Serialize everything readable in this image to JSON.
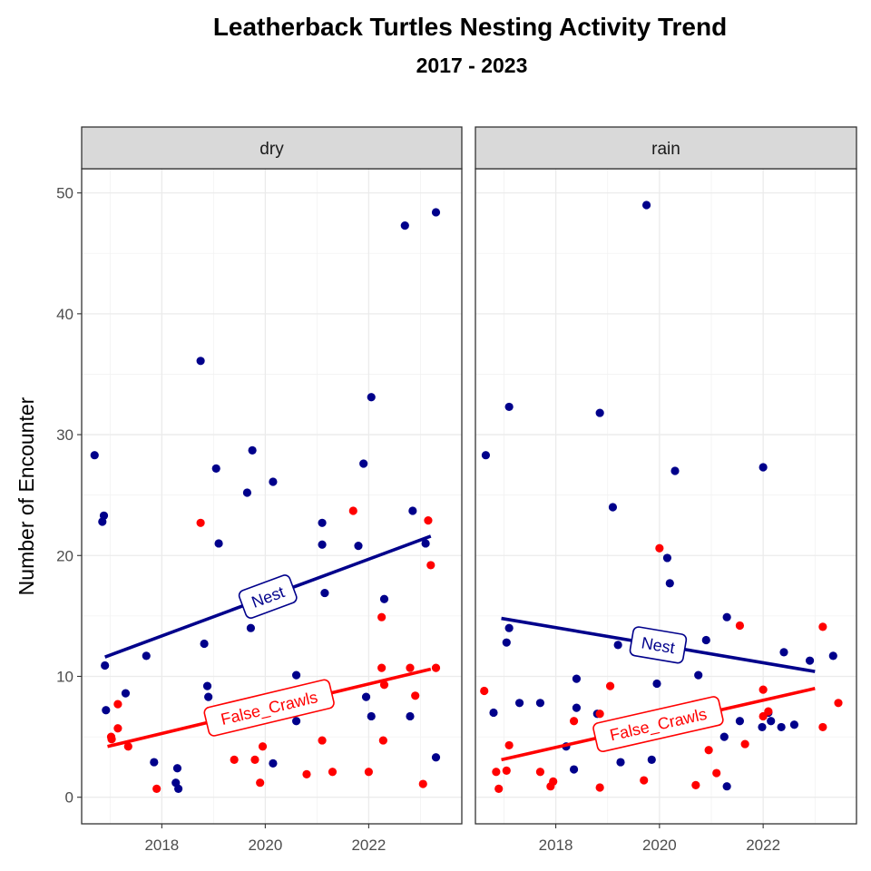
{
  "title": "Leatherback Turtles Nesting Activity Trend",
  "subtitle": "2017 - 2023",
  "chart_data": {
    "type": "scatter",
    "title": "Leatherback Turtles Nesting Activity Trend",
    "subtitle": "2017 - 2023",
    "xlabel": "",
    "ylabel": "Number of Encounter",
    "xlim": [
      2016.45,
      2023.8
    ],
    "ylim": [
      -2.2,
      52
    ],
    "x_ticks": [
      2018,
      2020,
      2022
    ],
    "x_tick_labels": [
      "2018",
      "2020",
      "2022"
    ],
    "y_ticks": [
      0,
      10,
      20,
      30,
      40,
      50
    ],
    "y_tick_labels": [
      "0",
      "10",
      "20",
      "30",
      "40",
      "50"
    ],
    "grid": true,
    "legend": "none",
    "colors": {
      "Nest": "#00008B",
      "False_Crawls": "#FF0000"
    },
    "panels": [
      {
        "label": "dry",
        "series": [
          {
            "name": "Nest",
            "points": [
              [
                2016.7,
                28.3
              ],
              [
                2016.85,
                22.8
              ],
              [
                2016.88,
                23.3
              ],
              [
                2016.9,
                10.9
              ],
              [
                2016.92,
                7.2
              ],
              [
                2017.3,
                8.6
              ],
              [
                2017.7,
                11.7
              ],
              [
                2017.85,
                2.9
              ],
              [
                2018.3,
                2.4
              ],
              [
                2018.27,
                1.2
              ],
              [
                2018.32,
                0.7
              ],
              [
                2018.75,
                36.1
              ],
              [
                2018.82,
                12.7
              ],
              [
                2018.88,
                9.2
              ],
              [
                2018.9,
                8.3
              ],
              [
                2019.05,
                27.2
              ],
              [
                2019.1,
                21.0
              ],
              [
                2019.65,
                25.2
              ],
              [
                2019.75,
                28.7
              ],
              [
                2019.72,
                14.0
              ],
              [
                2020.15,
                26.1
              ],
              [
                2020.15,
                2.8
              ],
              [
                2020.6,
                10.1
              ],
              [
                2020.6,
                6.3
              ],
              [
                2021.1,
                22.7
              ],
              [
                2021.1,
                20.9
              ],
              [
                2021.15,
                16.9
              ],
              [
                2021.8,
                20.8
              ],
              [
                2021.9,
                27.6
              ],
              [
                2021.95,
                8.3
              ],
              [
                2022.05,
                33.1
              ],
              [
                2022.05,
                6.7
              ],
              [
                2022.3,
                16.4
              ],
              [
                2022.7,
                47.3
              ],
              [
                2022.8,
                6.7
              ],
              [
                2022.85,
                23.7
              ],
              [
                2023.1,
                21.0
              ],
              [
                2023.3,
                48.4
              ],
              [
                2023.3,
                3.3
              ]
            ]
          },
          {
            "name": "False_Crawls",
            "points": [
              [
                2017.02,
                5.0
              ],
              [
                2017.03,
                4.8
              ],
              [
                2017.15,
                7.7
              ],
              [
                2017.15,
                5.7
              ],
              [
                2017.35,
                4.2
              ],
              [
                2017.9,
                0.7
              ],
              [
                2018.75,
                22.7
              ],
              [
                2019.4,
                3.1
              ],
              [
                2019.8,
                3.1
              ],
              [
                2019.9,
                1.2
              ],
              [
                2019.95,
                4.2
              ],
              [
                2020.8,
                1.9
              ],
              [
                2021.1,
                4.7
              ],
              [
                2021.3,
                2.1
              ],
              [
                2021.7,
                23.7
              ],
              [
                2022.0,
                2.1
              ],
              [
                2022.25,
                14.9
              ],
              [
                2022.25,
                10.7
              ],
              [
                2022.3,
                9.3
              ],
              [
                2022.28,
                4.7
              ],
              [
                2022.8,
                10.7
              ],
              [
                2022.9,
                8.4
              ],
              [
                2023.05,
                1.1
              ],
              [
                2023.15,
                22.9
              ],
              [
                2023.2,
                19.2
              ],
              [
                2023.3,
                10.7
              ]
            ]
          }
        ],
        "trend_lines": [
          {
            "name": "Nest",
            "x": [
              2016.9,
              2023.2
            ],
            "y": [
              11.6,
              21.6
            ],
            "label": "Nest"
          },
          {
            "name": "False_Crawls",
            "x": [
              2016.95,
              2023.2
            ],
            "y": [
              4.2,
              10.6
            ],
            "label": "False_Crawls"
          }
        ]
      },
      {
        "label": "rain",
        "series": [
          {
            "name": "Nest",
            "points": [
              [
                2016.65,
                28.3
              ],
              [
                2016.8,
                7.0
              ],
              [
                2017.05,
                12.8
              ],
              [
                2017.1,
                14.0
              ],
              [
                2017.1,
                32.3
              ],
              [
                2017.3,
                7.8
              ],
              [
                2017.7,
                7.8
              ],
              [
                2018.2,
                4.2
              ],
              [
                2018.35,
                2.3
              ],
              [
                2018.4,
                9.8
              ],
              [
                2018.4,
                7.4
              ],
              [
                2018.85,
                31.8
              ],
              [
                2018.8,
                6.9
              ],
              [
                2019.1,
                24.0
              ],
              [
                2019.2,
                12.6
              ],
              [
                2019.25,
                2.9
              ],
              [
                2019.75,
                49.0
              ],
              [
                2019.85,
                3.1
              ],
              [
                2019.95,
                9.4
              ],
              [
                2020.15,
                19.8
              ],
              [
                2020.2,
                17.7
              ],
              [
                2020.3,
                27.0
              ],
              [
                2020.75,
                10.1
              ],
              [
                2020.9,
                13.0
              ],
              [
                2021.3,
                14.9
              ],
              [
                2021.25,
                5.0
              ],
              [
                2021.3,
                0.9
              ],
              [
                2021.55,
                6.3
              ],
              [
                2022.0,
                27.3
              ],
              [
                2021.98,
                5.8
              ],
              [
                2022.1,
                7.0
              ],
              [
                2022.15,
                6.3
              ],
              [
                2022.4,
                12.0
              ],
              [
                2022.35,
                5.8
              ],
              [
                2022.6,
                6.0
              ],
              [
                2022.9,
                11.3
              ],
              [
                2023.35,
                11.7
              ]
            ]
          },
          {
            "name": "False_Crawls",
            "points": [
              [
                2016.62,
                8.8
              ],
              [
                2016.85,
                2.1
              ],
              [
                2016.9,
                0.7
              ],
              [
                2017.05,
                2.2
              ],
              [
                2017.1,
                4.3
              ],
              [
                2017.7,
                2.1
              ],
              [
                2017.9,
                0.9
              ],
              [
                2017.95,
                1.3
              ],
              [
                2018.35,
                6.3
              ],
              [
                2018.85,
                6.9
              ],
              [
                2018.85,
                0.8
              ],
              [
                2019.05,
                9.2
              ],
              [
                2019.7,
                1.4
              ],
              [
                2020.0,
                20.6
              ],
              [
                2020.7,
                1.0
              ],
              [
                2020.95,
                3.9
              ],
              [
                2021.1,
                2.0
              ],
              [
                2021.55,
                14.2
              ],
              [
                2021.65,
                4.4
              ],
              [
                2022.0,
                8.9
              ],
              [
                2022.0,
                6.7
              ],
              [
                2022.1,
                7.1
              ],
              [
                2023.15,
                14.1
              ],
              [
                2023.15,
                5.8
              ],
              [
                2023.45,
                7.8
              ]
            ]
          }
        ],
        "trend_lines": [
          {
            "name": "Nest",
            "x": [
              2016.95,
              2023.0
            ],
            "y": [
              14.8,
              10.4
            ],
            "label": "Nest"
          },
          {
            "name": "False_Crawls",
            "x": [
              2016.95,
              2023.0
            ],
            "y": [
              3.1,
              9.0
            ],
            "label": "False_Crawls"
          }
        ]
      }
    ]
  }
}
